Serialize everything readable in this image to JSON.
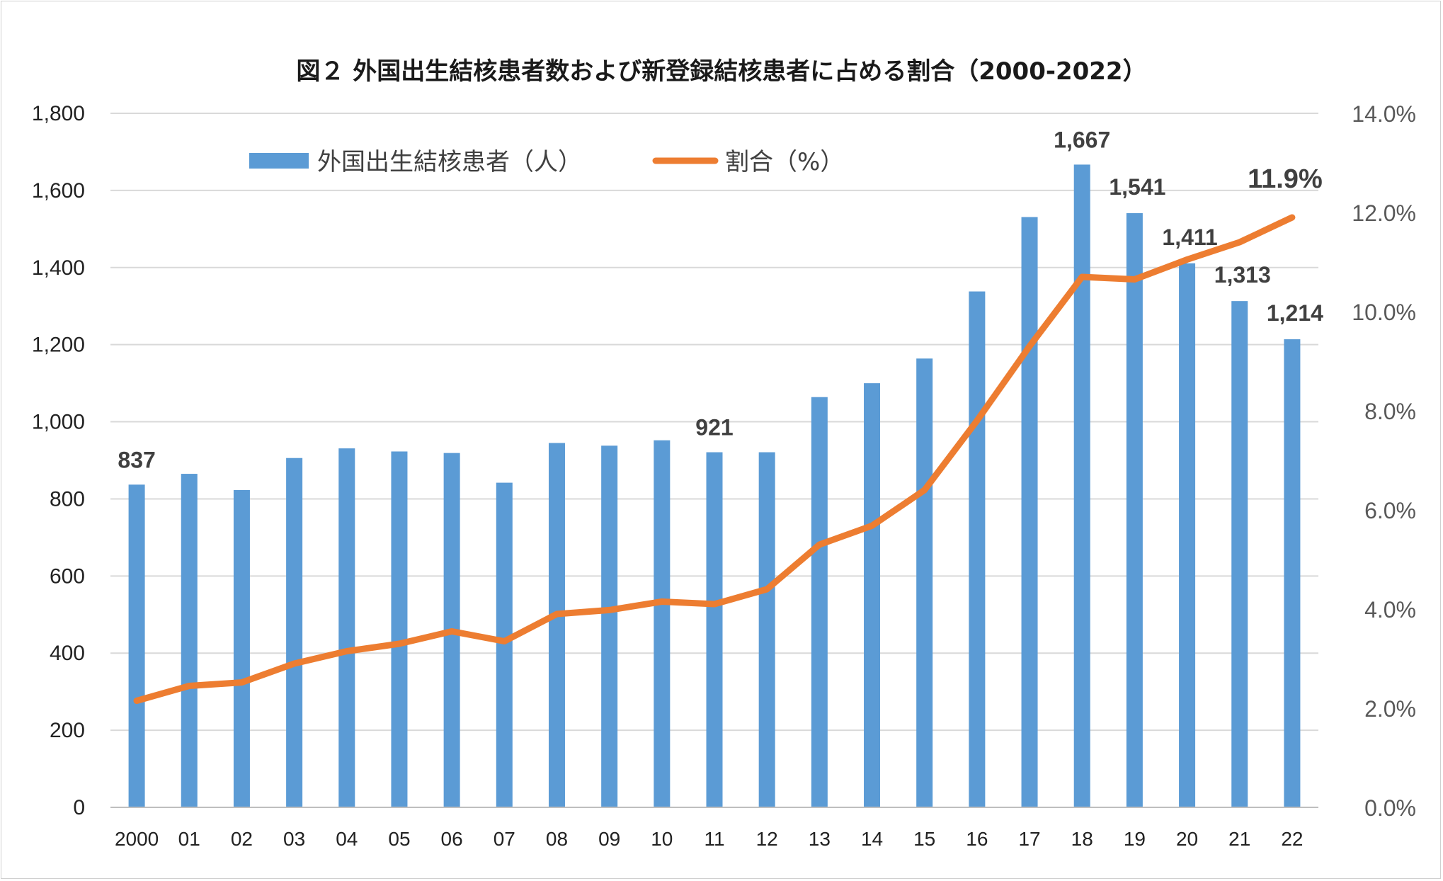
{
  "chart_data": {
    "type": "bar",
    "title": "図２ 外国出生結核患者数および新登録結核患者に占める割合（2000-2022）",
    "categories": [
      "2000",
      "01",
      "02",
      "03",
      "04",
      "05",
      "06",
      "07",
      "08",
      "09",
      "10",
      "11",
      "12",
      "13",
      "14",
      "15",
      "16",
      "17",
      "18",
      "19",
      "20",
      "21",
      "22"
    ],
    "series": [
      {
        "name": "外国出生結核患者（人）",
        "type": "bar",
        "axis": "left",
        "color": "#5B9BD5",
        "values": [
          837,
          865,
          823,
          906,
          931,
          923,
          919,
          842,
          945,
          938,
          952,
          921,
          921,
          1064,
          1100,
          1164,
          1338,
          1531,
          1667,
          1541,
          1411,
          1313,
          1214
        ]
      },
      {
        "name": "割合（%）",
        "type": "line",
        "axis": "right",
        "color": "#ED7D31",
        "values": [
          2.15,
          2.45,
          2.52,
          2.9,
          3.15,
          3.3,
          3.55,
          3.35,
          3.9,
          3.98,
          4.15,
          4.1,
          4.4,
          5.3,
          5.68,
          6.4,
          7.8,
          9.3,
          10.7,
          10.65,
          11.05,
          11.4,
          11.9
        ]
      }
    ],
    "ylim_left": [
      0,
      1800
    ],
    "ylim_right": [
      0,
      14
    ],
    "yticks_left": [
      "0",
      "200",
      "400",
      "600",
      "800",
      "1,000",
      "1,200",
      "1,400",
      "1,600",
      "1,800"
    ],
    "yticks_right": [
      "0.0%",
      "2.0%",
      "4.0%",
      "6.0%",
      "8.0%",
      "10.0%",
      "12.0%",
      "14.0%"
    ],
    "data_labels": [
      {
        "index": 0,
        "series": 0,
        "text": "837"
      },
      {
        "index": 11,
        "series": 0,
        "text": "921"
      },
      {
        "index": 18,
        "series": 0,
        "text": "1,667"
      },
      {
        "index": 19,
        "series": 0,
        "text": "1,541"
      },
      {
        "index": 20,
        "series": 0,
        "text": "1,411"
      },
      {
        "index": 21,
        "series": 0,
        "text": "1,313"
      },
      {
        "index": 22,
        "series": 0,
        "text": "1,214"
      },
      {
        "index": 22,
        "series": 1,
        "text": "11.9%"
      }
    ],
    "grid": true,
    "legend": "top-left"
  }
}
